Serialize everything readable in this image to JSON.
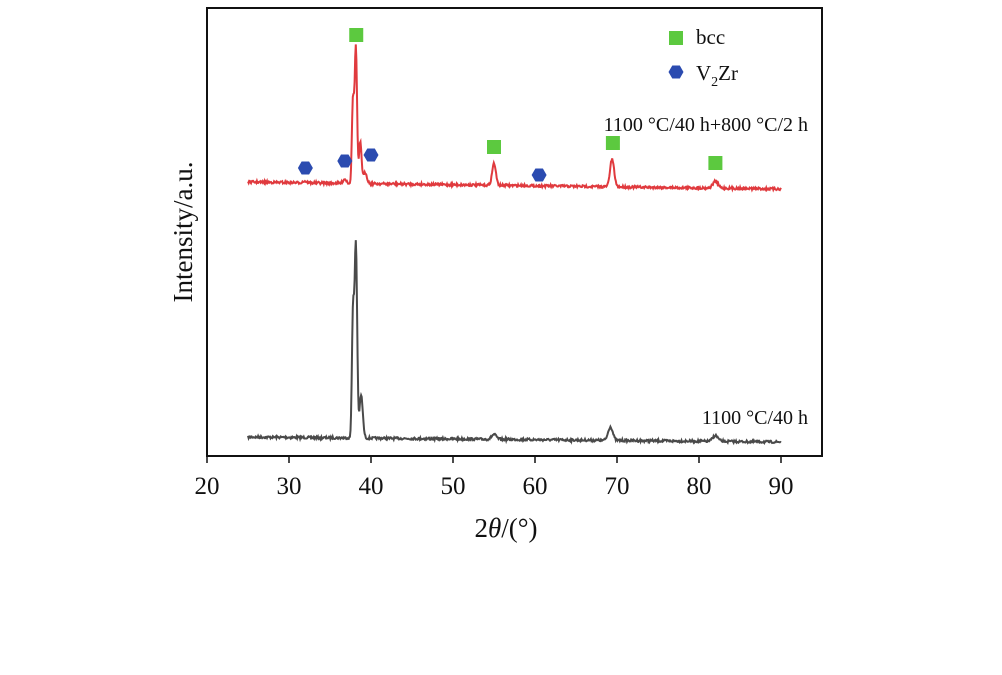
{
  "chart_data": {
    "type": "line",
    "xlabel_main": "2",
    "xlabel_theta": "θ",
    "xlabel_unit": "/(°)",
    "ylabel": "Intensity/a.u.",
    "xlim": [
      20,
      95
    ],
    "x_ticks": [
      "20",
      "30",
      "40",
      "50",
      "60",
      "70",
      "80",
      "90"
    ],
    "x_tick_values": [
      20,
      30,
      40,
      50,
      60,
      70,
      80,
      90
    ],
    "y_ticks_shown": false,
    "grid": false,
    "legend": {
      "placement": "top-right",
      "entries": [
        {
          "label": "bcc",
          "marker": "square",
          "color": "#5cc93f"
        },
        {
          "label_main": "V",
          "label_sub": "2",
          "label_rest": "Zr",
          "marker": "hexagon",
          "color": "#2b4bb0"
        }
      ]
    },
    "series": [
      {
        "name": "1100 °C/40 h",
        "color": "#4a4a4a",
        "baseline": 0.0,
        "peaks": [
          {
            "x": 37.8,
            "h": 0.62,
            "w": 0.18
          },
          {
            "x": 38.15,
            "h": 1.0,
            "w": 0.22
          },
          {
            "x": 38.8,
            "h": 0.22,
            "w": 0.28
          },
          {
            "x": 55.0,
            "h": 0.025,
            "w": 0.4
          },
          {
            "x": 69.2,
            "h": 0.07,
            "w": 0.4
          },
          {
            "x": 82.0,
            "h": 0.03,
            "w": 0.45
          }
        ]
      },
      {
        "name": "1100 °C/40 h+800 °C/2 h",
        "color": "#e03a3e",
        "baseline": 0.0,
        "peaks": [
          {
            "x": 31.9,
            "h": 0.012,
            "w": 0.3
          },
          {
            "x": 36.8,
            "h": 0.03,
            "w": 0.3
          },
          {
            "x": 37.8,
            "h": 0.6,
            "w": 0.18
          },
          {
            "x": 38.15,
            "h": 1.0,
            "w": 0.2
          },
          {
            "x": 38.7,
            "h": 0.3,
            "w": 0.22
          },
          {
            "x": 39.3,
            "h": 0.08,
            "w": 0.3
          },
          {
            "x": 55.0,
            "h": 0.16,
            "w": 0.32
          },
          {
            "x": 69.4,
            "h": 0.2,
            "w": 0.35
          },
          {
            "x": 82.0,
            "h": 0.05,
            "w": 0.45
          }
        ]
      }
    ],
    "x_range_data": [
      25,
      90
    ],
    "markers": {
      "bcc": [
        38.2,
        55.0,
        69.5,
        82.0
      ],
      "V2Zr": [
        32.0,
        36.8,
        40.0,
        60.5
      ]
    }
  }
}
